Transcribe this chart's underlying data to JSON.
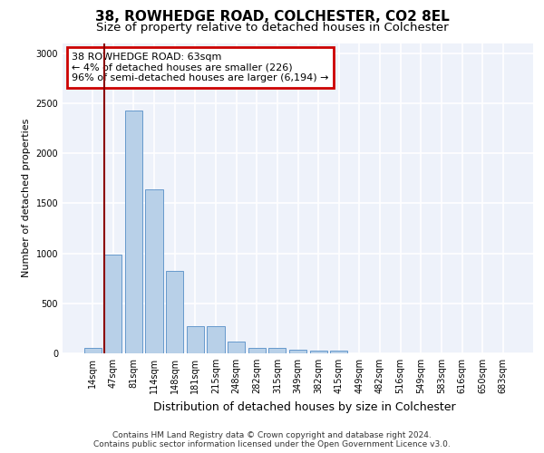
{
  "title1": "38, ROWHEDGE ROAD, COLCHESTER, CO2 8EL",
  "title2": "Size of property relative to detached houses in Colchester",
  "xlabel": "Distribution of detached houses by size in Colchester",
  "ylabel": "Number of detached properties",
  "categories": [
    "14sqm",
    "47sqm",
    "81sqm",
    "114sqm",
    "148sqm",
    "181sqm",
    "215sqm",
    "248sqm",
    "282sqm",
    "315sqm",
    "349sqm",
    "382sqm",
    "415sqm",
    "449sqm",
    "482sqm",
    "516sqm",
    "549sqm",
    "583sqm",
    "616sqm",
    "650sqm",
    "683sqm"
  ],
  "values": [
    55,
    990,
    2430,
    1640,
    820,
    270,
    270,
    120,
    50,
    50,
    40,
    25,
    30,
    0,
    0,
    0,
    0,
    0,
    0,
    0,
    0
  ],
  "bar_color": "#b8d0e8",
  "bar_edge_color": "#6699cc",
  "highlight_line_color": "#8b0000",
  "annotation_text": "38 ROWHEDGE ROAD: 63sqm\n← 4% of detached houses are smaller (226)\n96% of semi-detached houses are larger (6,194) →",
  "annotation_box_color": "#ffffff",
  "annotation_box_edge_color": "#cc0000",
  "ylim": [
    0,
    3100
  ],
  "yticks": [
    0,
    500,
    1000,
    1500,
    2000,
    2500,
    3000
  ],
  "background_color": "#eef2fa",
  "grid_color": "#ffffff",
  "footer_text": "Contains HM Land Registry data © Crown copyright and database right 2024.\nContains public sector information licensed under the Open Government Licence v3.0.",
  "title1_fontsize": 11,
  "title2_fontsize": 9.5,
  "xlabel_fontsize": 9,
  "ylabel_fontsize": 8,
  "tick_fontsize": 7,
  "annotation_fontsize": 8
}
